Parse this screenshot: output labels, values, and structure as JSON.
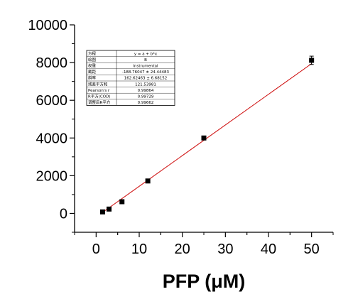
{
  "chart_data": {
    "type": "scatter",
    "title": "",
    "xlabel": "PFP (μM)",
    "ylabel": "",
    "xlim": [
      -5,
      55
    ],
    "ylim": [
      -1000,
      10000
    ],
    "x_ticks": [
      "0",
      "10",
      "20",
      "30",
      "40",
      "50"
    ],
    "y_ticks": [
      "0",
      "2000",
      "4000",
      "6000",
      "8000",
      "10000"
    ],
    "grid": false,
    "legend": "none",
    "series": [
      {
        "x": [
          1.5,
          3,
          6,
          12,
          25,
          50
        ],
        "y": [
          80,
          230,
          620,
          1720,
          4000,
          8120
        ],
        "y_error": [
          60,
          60,
          60,
          80,
          70,
          220
        ],
        "marker": "square",
        "color": "#000000"
      }
    ],
    "fit_line": {
      "color": "#cc0000",
      "intercept": -188.76047,
      "slope": 162.62463,
      "x_range": [
        1.5,
        50
      ]
    },
    "fit_table": [
      [
        "方程",
        "y = a + b*x"
      ],
      [
        "绘图",
        "B"
      ],
      [
        "权重",
        "Instrumental"
      ],
      [
        "截距",
        "-188.76047 ± 24.44483"
      ],
      [
        "斜率",
        "162.62463 ± 6.68152"
      ],
      [
        "残差平方和",
        "121.53981"
      ],
      [
        "Pearson's r",
        "0.99864"
      ],
      [
        "R平方(COD)",
        "0.99729"
      ],
      [
        "调整后R平方",
        "0.99662"
      ]
    ]
  }
}
